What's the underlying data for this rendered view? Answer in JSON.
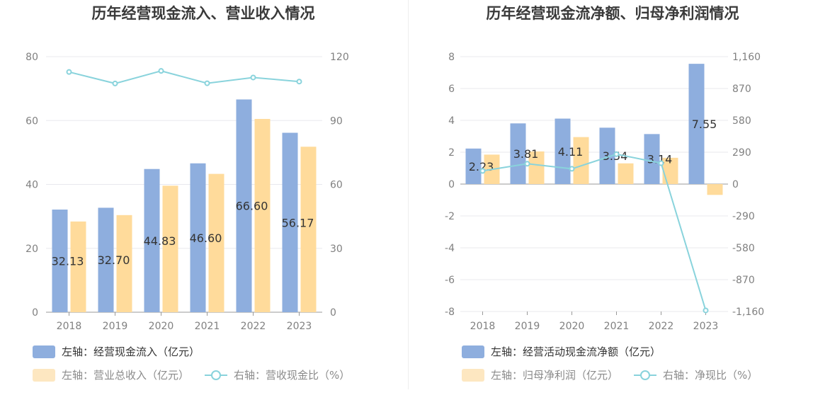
{
  "colors": {
    "bar_primary": "#8eaede",
    "bar_secondary": "#ffdb9b",
    "line": "#89d3dc",
    "grid": "#e8e8ee",
    "axis": "#999999",
    "legend_secondary_swatch": "#fde7c1"
  },
  "chart_data": [
    {
      "type": "bar",
      "title": "历年经营现金流入、营业收入情况",
      "categories": [
        "2018",
        "2019",
        "2020",
        "2021",
        "2022",
        "2023"
      ],
      "y_left_ticks": [
        "0",
        "20",
        "40",
        "60",
        "80"
      ],
      "y_right_ticks": [
        "0",
        "30",
        "60",
        "90",
        "120"
      ],
      "ylim_left": [
        0,
        80
      ],
      "ylim_right": [
        0,
        120
      ],
      "grid": true,
      "series": [
        {
          "name": "左轴：经营现金流入（亿元）",
          "axis": "left",
          "kind": "bar",
          "values": [
            32.13,
            32.7,
            44.83,
            46.6,
            66.6,
            56.17
          ],
          "labels": [
            "32.13",
            "32.70",
            "44.83",
            "46.60",
            "66.60",
            "56.17"
          ]
        },
        {
          "name": "左轴：营业总收入（亿元）",
          "axis": "left",
          "kind": "bar",
          "values": [
            28.4,
            30.4,
            39.6,
            43.3,
            60.5,
            51.8
          ]
        },
        {
          "name": "右轴：营收现金比（%）",
          "axis": "right",
          "kind": "line",
          "values": [
            112.8,
            107.4,
            113.3,
            107.5,
            110.2,
            108.3
          ]
        }
      ]
    },
    {
      "type": "bar",
      "title": "历年经营现金流净额、归母净利润情况",
      "categories": [
        "2018",
        "2019",
        "2020",
        "2021",
        "2022",
        "2023"
      ],
      "y_left_ticks": [
        "-8",
        "-6",
        "-4",
        "-2",
        "0",
        "2",
        "4",
        "6",
        "8"
      ],
      "y_right_ticks": [
        "-1,160",
        "-870",
        "-580",
        "-290",
        "0",
        "290",
        "580",
        "870",
        "1,160"
      ],
      "ylim_left": [
        -8,
        8
      ],
      "ylim_right": [
        -1160,
        1160
      ],
      "grid": true,
      "series": [
        {
          "name": "左轴：经营活动现金流净额（亿元）",
          "axis": "left",
          "kind": "bar",
          "values": [
            2.23,
            3.81,
            4.11,
            3.54,
            3.14,
            7.55
          ],
          "labels": [
            "2.23",
            "3.81",
            "4.11",
            "3.54",
            "3.14",
            "7.55"
          ]
        },
        {
          "name": "左轴：归母净利润（亿元）",
          "axis": "left",
          "kind": "bar",
          "values": [
            1.85,
            2.05,
            2.95,
            1.3,
            1.65,
            -0.68
          ]
        },
        {
          "name": "右轴：净现比（%）",
          "axis": "right",
          "kind": "line",
          "values": [
            120,
            185,
            139,
            272,
            190,
            -1150
          ]
        }
      ]
    }
  ]
}
